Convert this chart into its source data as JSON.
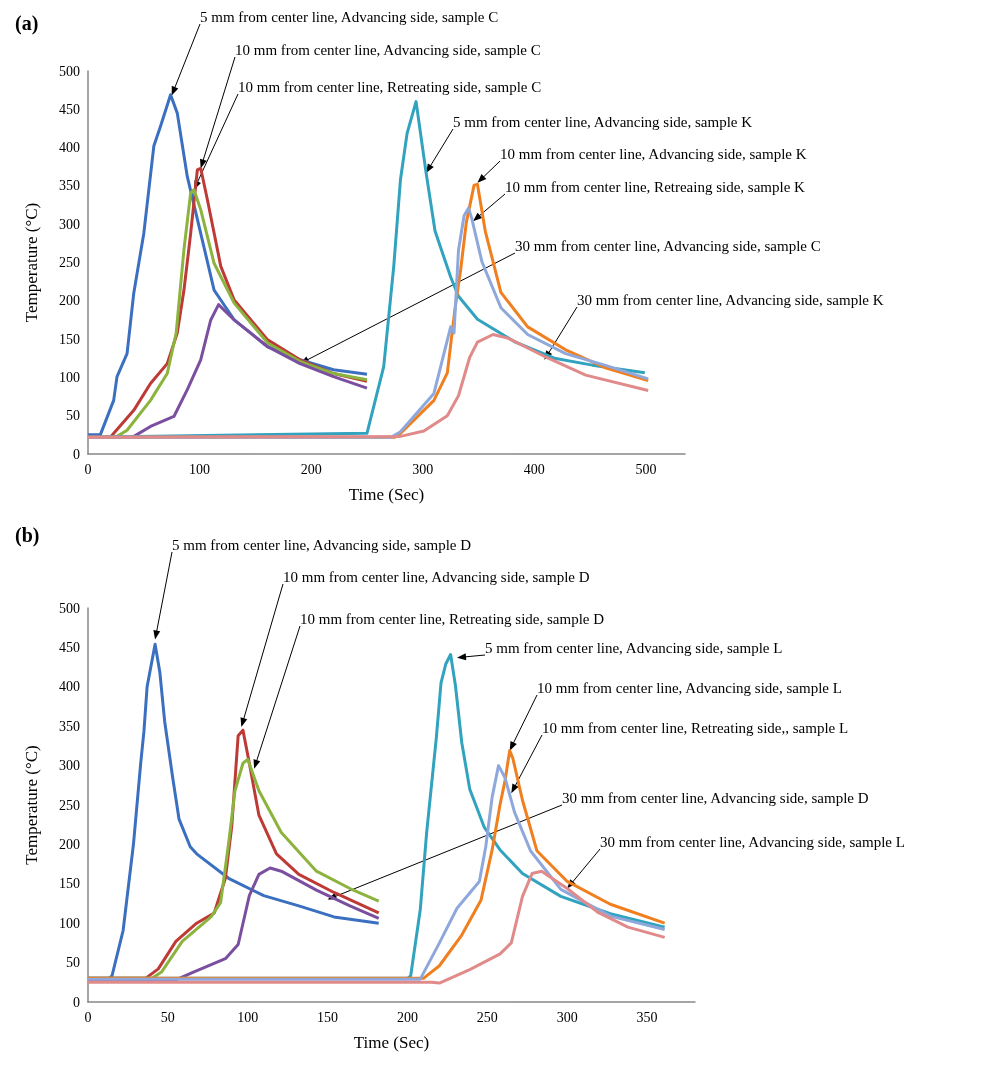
{
  "chart_data": [
    {
      "type": "line",
      "title": "(a)",
      "xlabel": "Time (Sec)",
      "ylabel": "Temperature (°C)",
      "xlim": [
        0,
        535
      ],
      "xticks": [
        0,
        100,
        200,
        300,
        400,
        500
      ],
      "ylim": [
        0,
        500
      ],
      "yticks": [
        0,
        50,
        100,
        150,
        200,
        250,
        300,
        350,
        400,
        450,
        500
      ],
      "series": [
        {
          "color": "#3b6fbf",
          "x": [
            0,
            11,
            23,
            26,
            35,
            41,
            50,
            59,
            65,
            74,
            80,
            89,
            101,
            113,
            119,
            131,
            161,
            190,
            220,
            250
          ],
          "values": [
            25,
            25,
            70,
            101,
            131,
            210,
            288,
            402,
            428,
            469,
            445,
            362,
            288,
            214,
            201,
            175,
            140,
            123,
            110,
            104
          ]
        },
        {
          "color": "#be3a36",
          "x": [
            0,
            20,
            41,
            56,
            71,
            80,
            86,
            92,
            98,
            101,
            107,
            119,
            131,
            161,
            190,
            220,
            250
          ],
          "values": [
            22,
            22,
            57,
            92,
            118,
            158,
            214,
            288,
            371,
            373,
            332,
            245,
            201,
            149,
            123,
            105,
            95
          ]
        },
        {
          "color": "#8cb33e",
          "x": [
            0,
            25,
            35,
            56,
            71,
            79,
            86,
            92,
            95,
            101,
            113,
            131,
            161,
            190,
            220,
            250
          ],
          "values": [
            22,
            22,
            31,
            70,
            105,
            158,
            267,
            341,
            345,
            319,
            249,
            197,
            145,
            121,
            105,
            97
          ]
        },
        {
          "color": "#7b4fa0",
          "x": [
            0,
            40,
            56,
            77,
            89,
            101,
            110,
            117,
            131,
            161,
            190,
            220,
            250
          ],
          "values": [
            22,
            22,
            36,
            49,
            84,
            123,
            175,
            195,
            175,
            140,
            118,
            101,
            86
          ]
        },
        {
          "color": "#31a3be",
          "x": [
            0,
            250,
            265,
            274,
            280,
            286,
            294,
            303,
            311,
            325,
            332,
            349,
            383,
            418,
            452,
            499
          ],
          "values": [
            22,
            27,
            114,
            245,
            358,
            419,
            460,
            367,
            291,
            231,
            206,
            176,
            146,
            125,
            116,
            106
          ]
        },
        {
          "color": "#f07f20",
          "x": [
            0,
            275,
            280,
            310,
            322,
            329,
            334,
            339,
            346,
            349,
            356,
            370,
            394,
            428,
            463,
            502
          ],
          "values": [
            22,
            22,
            27,
            70,
            106,
            191,
            241,
            302,
            351,
            352,
            291,
            211,
            166,
            136,
            113,
            96
          ]
        },
        {
          "color": "#8fa8dc",
          "x": [
            0,
            272,
            280,
            310,
            325,
            328,
            332,
            337,
            341,
            344,
            353,
            370,
            394,
            428,
            463,
            502
          ],
          "values": [
            22,
            22,
            29,
            79,
            166,
            158,
            266,
            311,
            321,
            307,
            251,
            191,
            156,
            131,
            116,
            98
          ]
        },
        {
          "color": "#e08a8a",
          "x": [
            0,
            280,
            301,
            322,
            332,
            342,
            349,
            363,
            377,
            411,
            446,
            502
          ],
          "values": [
            22,
            23,
            30,
            50,
            76,
            126,
            146,
            156,
            151,
            126,
            103,
            83
          ]
        }
      ],
      "annotations": [
        {
          "text": "5 mm from center line, Advancing side, sample C",
          "x": 75,
          "y": 468
        },
        {
          "text": "10 mm from center line, Advancing side, sample C",
          "x": 101,
          "y": 373
        },
        {
          "text": "10 mm from center line, Retreating side, sample C",
          "x": 95,
          "y": 345
        },
        {
          "text": "5 mm from center line, Advancing side, sample K",
          "x": 303,
          "y": 367
        },
        {
          "text": "10 mm from center line, Advancing side, sample K",
          "x": 349,
          "y": 354
        },
        {
          "text": "10 mm from center line, Retreaing side, sample K",
          "x": 345,
          "y": 304
        },
        {
          "text": "30 mm from center line, Advancing side, sample C",
          "x": 190,
          "y": 118
        },
        {
          "text": "30 mm from center line, Advancing side, sample K",
          "x": 409,
          "y": 123
        }
      ]
    },
    {
      "type": "line",
      "title": "(b)",
      "xlabel": "Time (Sec)",
      "ylabel": "Temperature (°C)",
      "xlim": [
        0,
        380
      ],
      "xticks": [
        0,
        50,
        100,
        150,
        200,
        250,
        300,
        350
      ],
      "ylim": [
        0,
        500
      ],
      "yticks": [
        0,
        50,
        100,
        150,
        200,
        250,
        300,
        350,
        400,
        450,
        500
      ],
      "series": [
        {
          "color": "#3b6fbf",
          "x": [
            0,
            12,
            15,
            22,
            28.5,
            33,
            35,
            37,
            42,
            45,
            48,
            53,
            57,
            64,
            68,
            88,
            110,
            132,
            154,
            182
          ],
          "values": [
            28,
            28,
            33,
            91,
            201,
            303,
            343,
            400,
            454,
            418,
            356,
            285,
            232,
            197,
            188,
            157,
            135,
            122,
            108,
            100
          ]
        },
        {
          "color": "#be3a36",
          "x": [
            0,
            36,
            44,
            55,
            68,
            79,
            86,
            90,
            94,
            97,
            101,
            107,
            118,
            132,
            154,
            182
          ],
          "values": [
            30,
            30,
            42,
            77,
            100,
            113,
            157,
            223,
            338,
            345,
            303,
            237,
            188,
            162,
            139,
            113
          ]
        },
        {
          "color": "#8cb33e",
          "x": [
            0,
            40,
            46,
            59,
            77,
            83,
            88,
            92,
            97,
            100,
            107,
            121,
            143,
            164,
            182
          ],
          "values": [
            30,
            30,
            38,
            77,
            108,
            126,
            201,
            268,
            303,
            308,
            268,
            215,
            166,
            144,
            128
          ]
        },
        {
          "color": "#7b4fa0",
          "x": [
            0,
            55,
            66,
            86,
            94,
            101,
            107,
            114,
            121,
            143,
            164,
            182
          ],
          "values": [
            28,
            28,
            38,
            55,
            73,
            135,
            162,
            170,
            166,
            142,
            122,
            106
          ]
        },
        {
          "color": "#31a3be",
          "x": [
            0,
            200,
            202,
            208,
            212,
            218,
            221,
            224,
            227,
            230,
            234,
            239,
            248,
            258,
            272,
            296,
            327,
            361
          ],
          "values": [
            30,
            30,
            33,
            117,
            215,
            334,
            405,
            429,
            441,
            402,
            329,
            270,
            222,
            193,
            163,
            134,
            112,
            95
          ]
        },
        {
          "color": "#f07f20",
          "x": [
            0,
            210,
            220,
            234,
            246,
            253,
            258,
            261,
            264,
            266,
            272,
            281,
            300,
            327,
            361
          ],
          "values": [
            30,
            30,
            46,
            85,
            129,
            193,
            251,
            280,
            319,
            309,
            256,
            192,
            153,
            124,
            100
          ]
        },
        {
          "color": "#8fa8dc",
          "x": [
            0,
            205,
            208,
            220,
            231,
            245,
            249,
            253,
            257,
            261,
            267,
            277,
            296,
            327,
            361
          ],
          "values": [
            29,
            29,
            29,
            75,
            119,
            153,
            197,
            260,
            300,
            285,
            241,
            192,
            143,
            109,
            92
          ]
        },
        {
          "color": "#e08a8a",
          "x": [
            0,
            215,
            220,
            239,
            258,
            265,
            272,
            278,
            284,
            300,
            319,
            338,
            361
          ],
          "values": [
            25,
            25,
            24,
            41,
            61,
            75,
            134,
            163,
            166,
            144,
            114,
            95,
            82
          ]
        }
      ],
      "annotations": [
        {
          "text": "5 mm from center line, Advancing side, sample D",
          "x": 42,
          "y": 460
        },
        {
          "text": "10 mm from center line, Advancing side, sample D",
          "x": 96,
          "y": 349
        },
        {
          "text": "10 mm from center line, Retreating side, sample D",
          "x": 104,
          "y": 296
        },
        {
          "text": "5 mm from center line, Advancing side, sample L",
          "x": 231,
          "y": 437
        },
        {
          "text": "10 mm from center line, Advancing side, sample L",
          "x": 264,
          "y": 319
        },
        {
          "text": "10 mm from center line, Retreating side,, sample L",
          "x": 265,
          "y": 265
        },
        {
          "text": "30 mm from center line, Advancing side, sample D",
          "x": 150,
          "y": 130
        },
        {
          "text": "30 mm from center line, Advancing side, sample L",
          "x": 300,
          "y": 144
        }
      ]
    }
  ]
}
